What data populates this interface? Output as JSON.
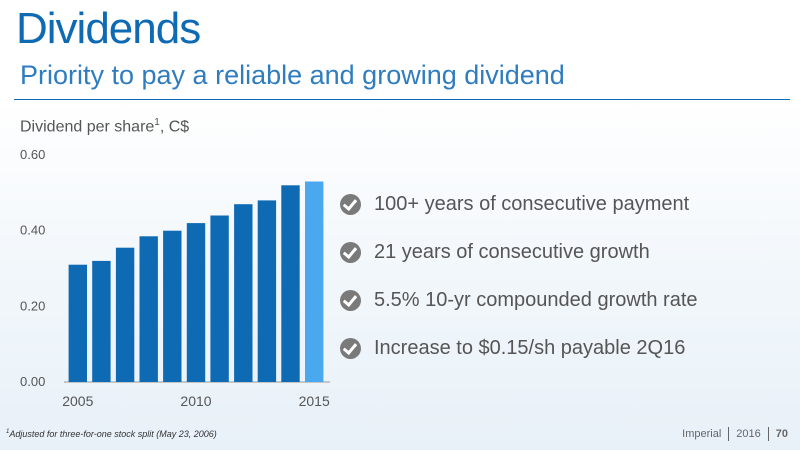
{
  "header": {
    "title": "Dividends",
    "subtitle": "Priority to pay a reliable and growing dividend"
  },
  "chart_label": {
    "text": "Dividend per share",
    "sup": "1",
    "unit": ", C$"
  },
  "chart_data": {
    "type": "bar",
    "ylabel": "Dividend per share¹, C$",
    "x": [
      2005,
      2006,
      2007,
      2008,
      2009,
      2010,
      2011,
      2012,
      2013,
      2014,
      2015
    ],
    "values": [
      0.31,
      0.32,
      0.355,
      0.385,
      0.4,
      0.42,
      0.44,
      0.47,
      0.48,
      0.52,
      0.53
    ],
    "ylim": [
      0,
      0.6
    ],
    "yticks": [
      "0.00",
      "0.20",
      "0.40",
      "0.60"
    ],
    "xticks": [
      "2005",
      "2010",
      "2015"
    ],
    "xtick_years": [
      2005,
      2010,
      2015
    ],
    "grid": false,
    "colors": {
      "bar": "#0f6ab4",
      "highlight": "#4aa8ee",
      "axis": "#999999"
    },
    "highlight_index": 10
  },
  "bullets": [
    "100+ years of consecutive payment",
    "21 years of consecutive growth",
    "5.5% 10-yr compounded growth rate",
    "Increase to $0.15/sh payable 2Q16"
  ],
  "footnote": {
    "sup": "1",
    "text": "Adjusted for three-for-one stock split (May 23, 2006)"
  },
  "footer": {
    "company": "Imperial",
    "year": "2016",
    "page": "70"
  }
}
